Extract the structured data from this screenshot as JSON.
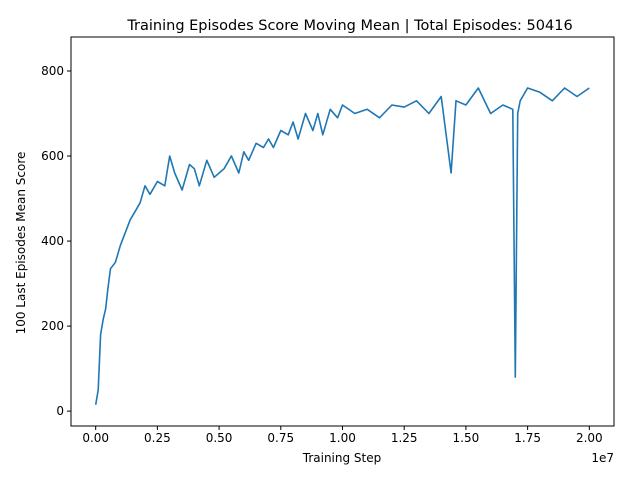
{
  "chart_data": {
    "type": "line",
    "title": "Training Episodes Score Moving Mean | Total Episodes: 50416",
    "xlabel": "Training Step",
    "ylabel": "100 Last Episodes Mean Score",
    "x_offset_label": "1e7",
    "xlim": [
      -0.1,
      2.1
    ],
    "ylim": [
      -35,
      880
    ],
    "x_ticks": [
      0.0,
      0.25,
      0.5,
      0.75,
      1.0,
      1.25,
      1.5,
      1.75,
      2.0
    ],
    "x_tick_labels": [
      "0.00",
      "0.25",
      "0.50",
      "0.75",
      "1.00",
      "1.25",
      "1.50",
      "1.75",
      "2.00"
    ],
    "y_ticks": [
      0,
      200,
      400,
      600,
      800
    ],
    "y_tick_labels": [
      "0",
      "200",
      "400",
      "600",
      "800"
    ],
    "grid": false,
    "line_color": "#1f77b4",
    "series": [
      {
        "x": [
          0.0,
          0.01,
          0.02,
          0.03,
          0.04,
          0.05,
          0.06,
          0.08,
          0.1,
          0.12,
          0.14,
          0.16,
          0.18,
          0.2,
          0.22,
          0.25,
          0.28,
          0.3,
          0.32,
          0.35,
          0.38,
          0.4,
          0.42,
          0.45,
          0.48,
          0.5,
          0.52,
          0.55,
          0.58,
          0.6,
          0.62,
          0.65,
          0.68,
          0.7,
          0.72,
          0.75,
          0.78,
          0.8,
          0.82,
          0.85,
          0.88,
          0.9,
          0.92,
          0.95,
          0.98,
          1.0,
          1.05,
          1.1,
          1.15,
          1.2,
          1.25,
          1.3,
          1.35,
          1.4,
          1.44,
          1.46,
          1.5,
          1.55,
          1.6,
          1.65,
          1.69,
          1.7,
          1.71,
          1.72,
          1.75,
          1.8,
          1.85,
          1.9,
          1.95,
          2.0
        ],
        "y": [
          15,
          50,
          180,
          215,
          240,
          290,
          335,
          350,
          390,
          420,
          450,
          470,
          490,
          530,
          510,
          540,
          530,
          600,
          560,
          520,
          580,
          570,
          530,
          590,
          550,
          560,
          570,
          600,
          560,
          610,
          590,
          630,
          620,
          640,
          620,
          660,
          650,
          680,
          640,
          700,
          660,
          700,
          650,
          710,
          690,
          720,
          700,
          710,
          690,
          720,
          715,
          730,
          700,
          740,
          560,
          730,
          720,
          760,
          700,
          720,
          710,
          80,
          700,
          730,
          760,
          750,
          730,
          760,
          740,
          760
        ]
      }
    ]
  }
}
